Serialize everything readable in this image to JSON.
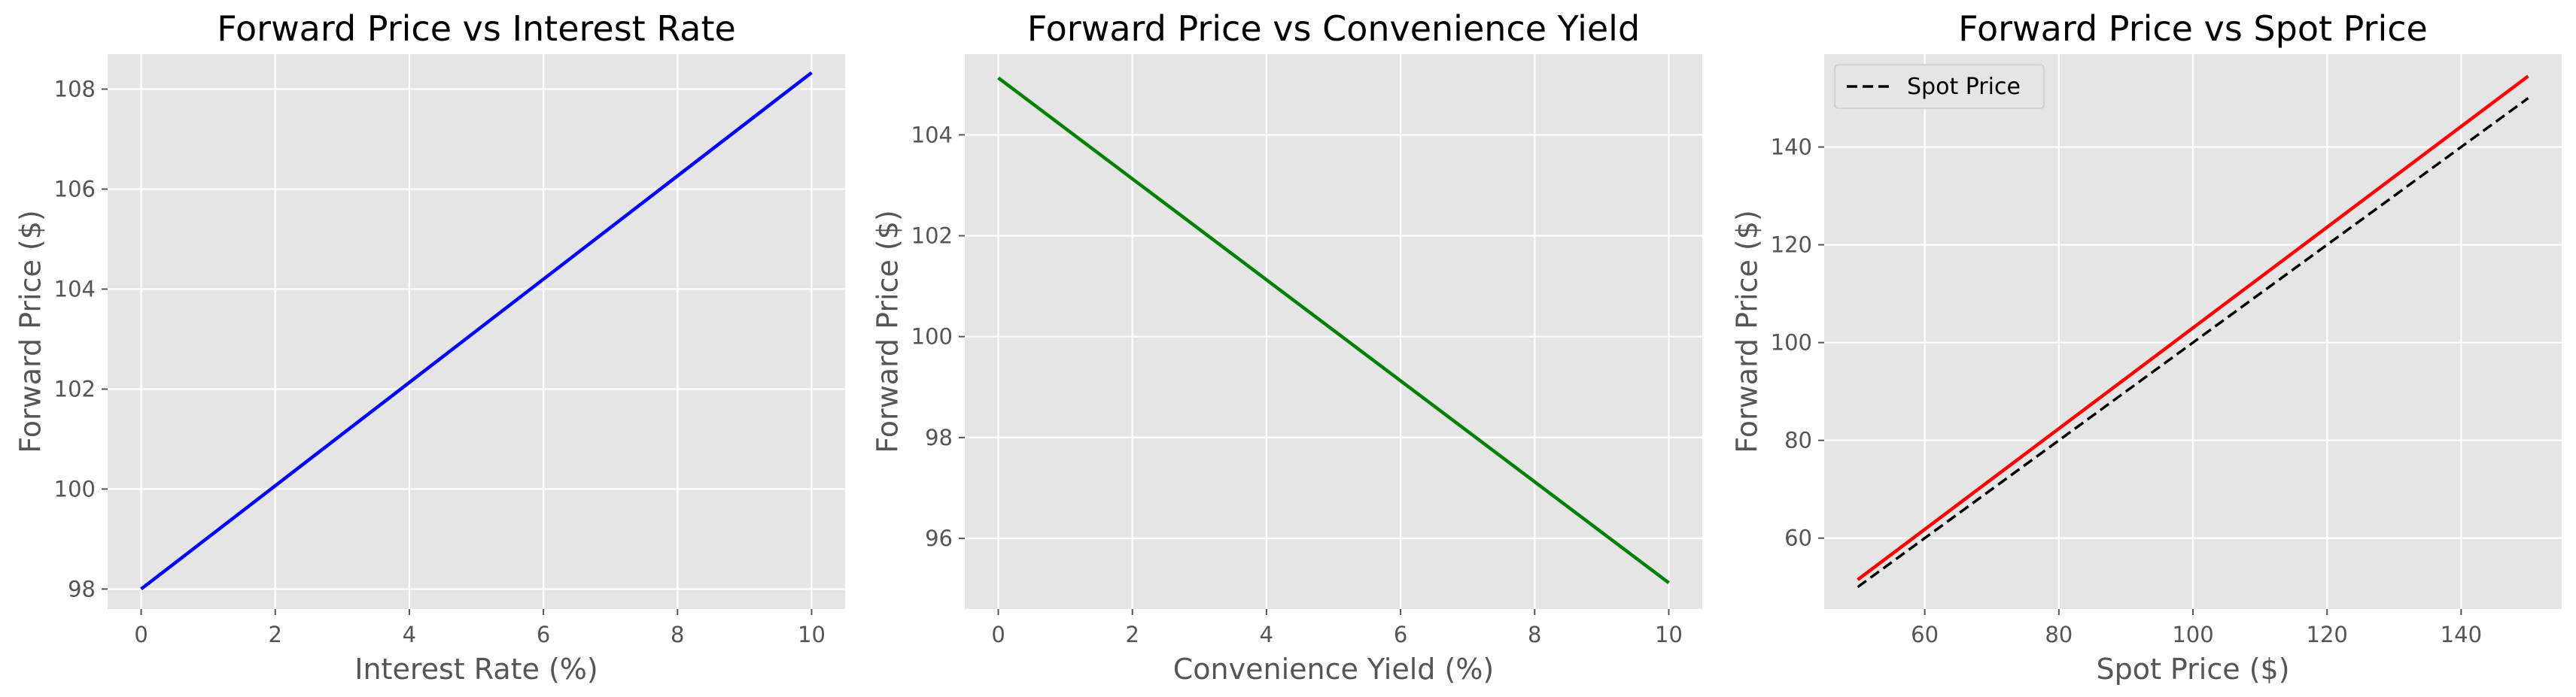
{
  "chart_data": [
    {
      "type": "line",
      "title": "Forward Price vs Interest Rate",
      "xlabel": "Interest Rate (%)",
      "ylabel": "Forward Price ($)",
      "xlim": [
        -0.5,
        10.5
      ],
      "ylim": [
        97.6,
        108.7
      ],
      "xticks": [
        0,
        2,
        4,
        6,
        8,
        10
      ],
      "yticks": [
        98,
        100,
        102,
        104,
        106,
        108
      ],
      "grid": true,
      "series": [
        {
          "color": "#0000ff",
          "style": "solid",
          "x": [
            0,
            10
          ],
          "y": [
            98.0,
            108.33
          ]
        }
      ]
    },
    {
      "type": "line",
      "title": "Forward Price vs Convenience Yield",
      "xlabel": "Convenience Yield (%)",
      "ylabel": "Forward Price ($)",
      "xlim": [
        -0.5,
        10.5
      ],
      "ylim": [
        94.6,
        105.6
      ],
      "xticks": [
        0,
        2,
        4,
        6,
        8,
        10
      ],
      "yticks": [
        96,
        98,
        100,
        102,
        104
      ],
      "grid": true,
      "series": [
        {
          "color": "#008000",
          "style": "solid",
          "x": [
            0,
            10
          ],
          "y": [
            105.13,
            95.12
          ]
        }
      ]
    },
    {
      "type": "line",
      "title": "Forward Price vs Spot Price",
      "xlabel": "Spot Price ($)",
      "ylabel": "Forward Price ($)",
      "xlim": [
        45,
        155
      ],
      "ylim": [
        45.5,
        159
      ],
      "xticks": [
        60,
        80,
        100,
        120,
        140
      ],
      "yticks": [
        60,
        80,
        100,
        120,
        140
      ],
      "grid": true,
      "legend": {
        "position": "top-left",
        "entries": [
          "Spot Price"
        ]
      },
      "series": [
        {
          "color": "#ff0000",
          "style": "solid",
          "x": [
            50,
            150
          ],
          "y": [
            51.5,
            154.5
          ]
        },
        {
          "name": "Spot Price",
          "color": "#000000",
          "style": "dashed",
          "x": [
            50,
            150
          ],
          "y": [
            50,
            150
          ]
        }
      ]
    }
  ]
}
